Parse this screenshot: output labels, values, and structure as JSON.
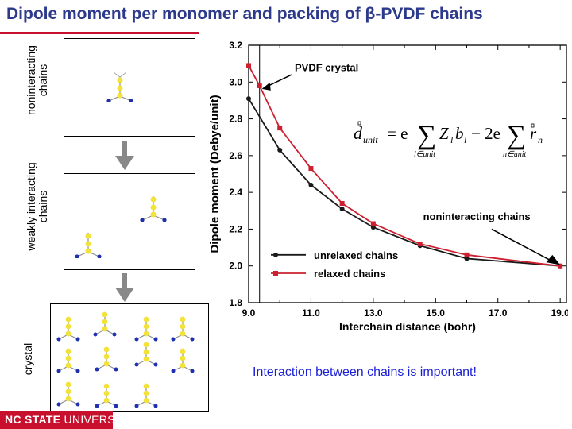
{
  "title": "Dipole moment per monomer and packing of β-PVDF chains",
  "side_labels": {
    "noninteracting": [
      "noninteracting",
      "chains"
    ],
    "weakly": [
      "weakly interacting",
      "chains"
    ],
    "crystal": [
      "crystal"
    ]
  },
  "footer": {
    "brand_bold": "NC STATE",
    "brand_rest": " UNIVERSITY"
  },
  "note": "Interaction between chains is important!",
  "colors": {
    "title": "#2d3a8c",
    "unrelaxed": "#1a1a1a",
    "relaxed": "#cc1f2f",
    "note": "#1a1fd6",
    "brand": "#c8102e"
  },
  "chart_data": {
    "type": "line",
    "xlabel": "Interchain distance (bohr)",
    "ylabel": "Dipole moment (Debye/unit)",
    "xlim": [
      9.0,
      19.2
    ],
    "ylim": [
      1.8,
      3.2
    ],
    "xticks": [
      "9.0",
      "11.0",
      "13.0",
      "15.0",
      "17.0",
      "19.0"
    ],
    "xtick_values": [
      9,
      11,
      13,
      15,
      17,
      19
    ],
    "yticks": [
      "1.8",
      "2.0",
      "2.2",
      "2.4",
      "2.6",
      "2.8",
      "3.0",
      "3.2"
    ],
    "ytick_values": [
      1.8,
      2.0,
      2.2,
      2.4,
      2.6,
      2.8,
      3.0,
      3.2
    ],
    "series": [
      {
        "name": "unrelaxed chains",
        "marker": "circle",
        "x": [
          9.0,
          10.0,
          11.0,
          12.0,
          13.0,
          14.5,
          16.0,
          19.0
        ],
        "y": [
          2.91,
          2.63,
          2.44,
          2.31,
          2.21,
          2.11,
          2.04,
          2.0
        ]
      },
      {
        "name": "relaxed chains",
        "marker": "square",
        "x": [
          9.0,
          9.35,
          10.0,
          11.0,
          12.0,
          13.0,
          14.5,
          16.0,
          19.0
        ],
        "y": [
          3.09,
          2.98,
          2.75,
          2.53,
          2.34,
          2.23,
          2.12,
          2.06,
          2.0
        ]
      }
    ],
    "reference_line_x": 9.35,
    "legend_position": "bottom-left",
    "annotations": {
      "crystal": "PVDF crystal",
      "noninteracting": "noninteracting chains"
    },
    "formula": {
      "lhs": "d",
      "lhs_sub": "unit",
      "eq": "= e",
      "term1": "Z",
      "term1_sub": "l",
      "term1_b": "b",
      "term1_b_sub": "l",
      "sum1_sub": "l∈unit",
      "minus": "− 2e",
      "term2": "r",
      "term2_sub": "n",
      "sum2_sub": "n∈unit"
    }
  }
}
